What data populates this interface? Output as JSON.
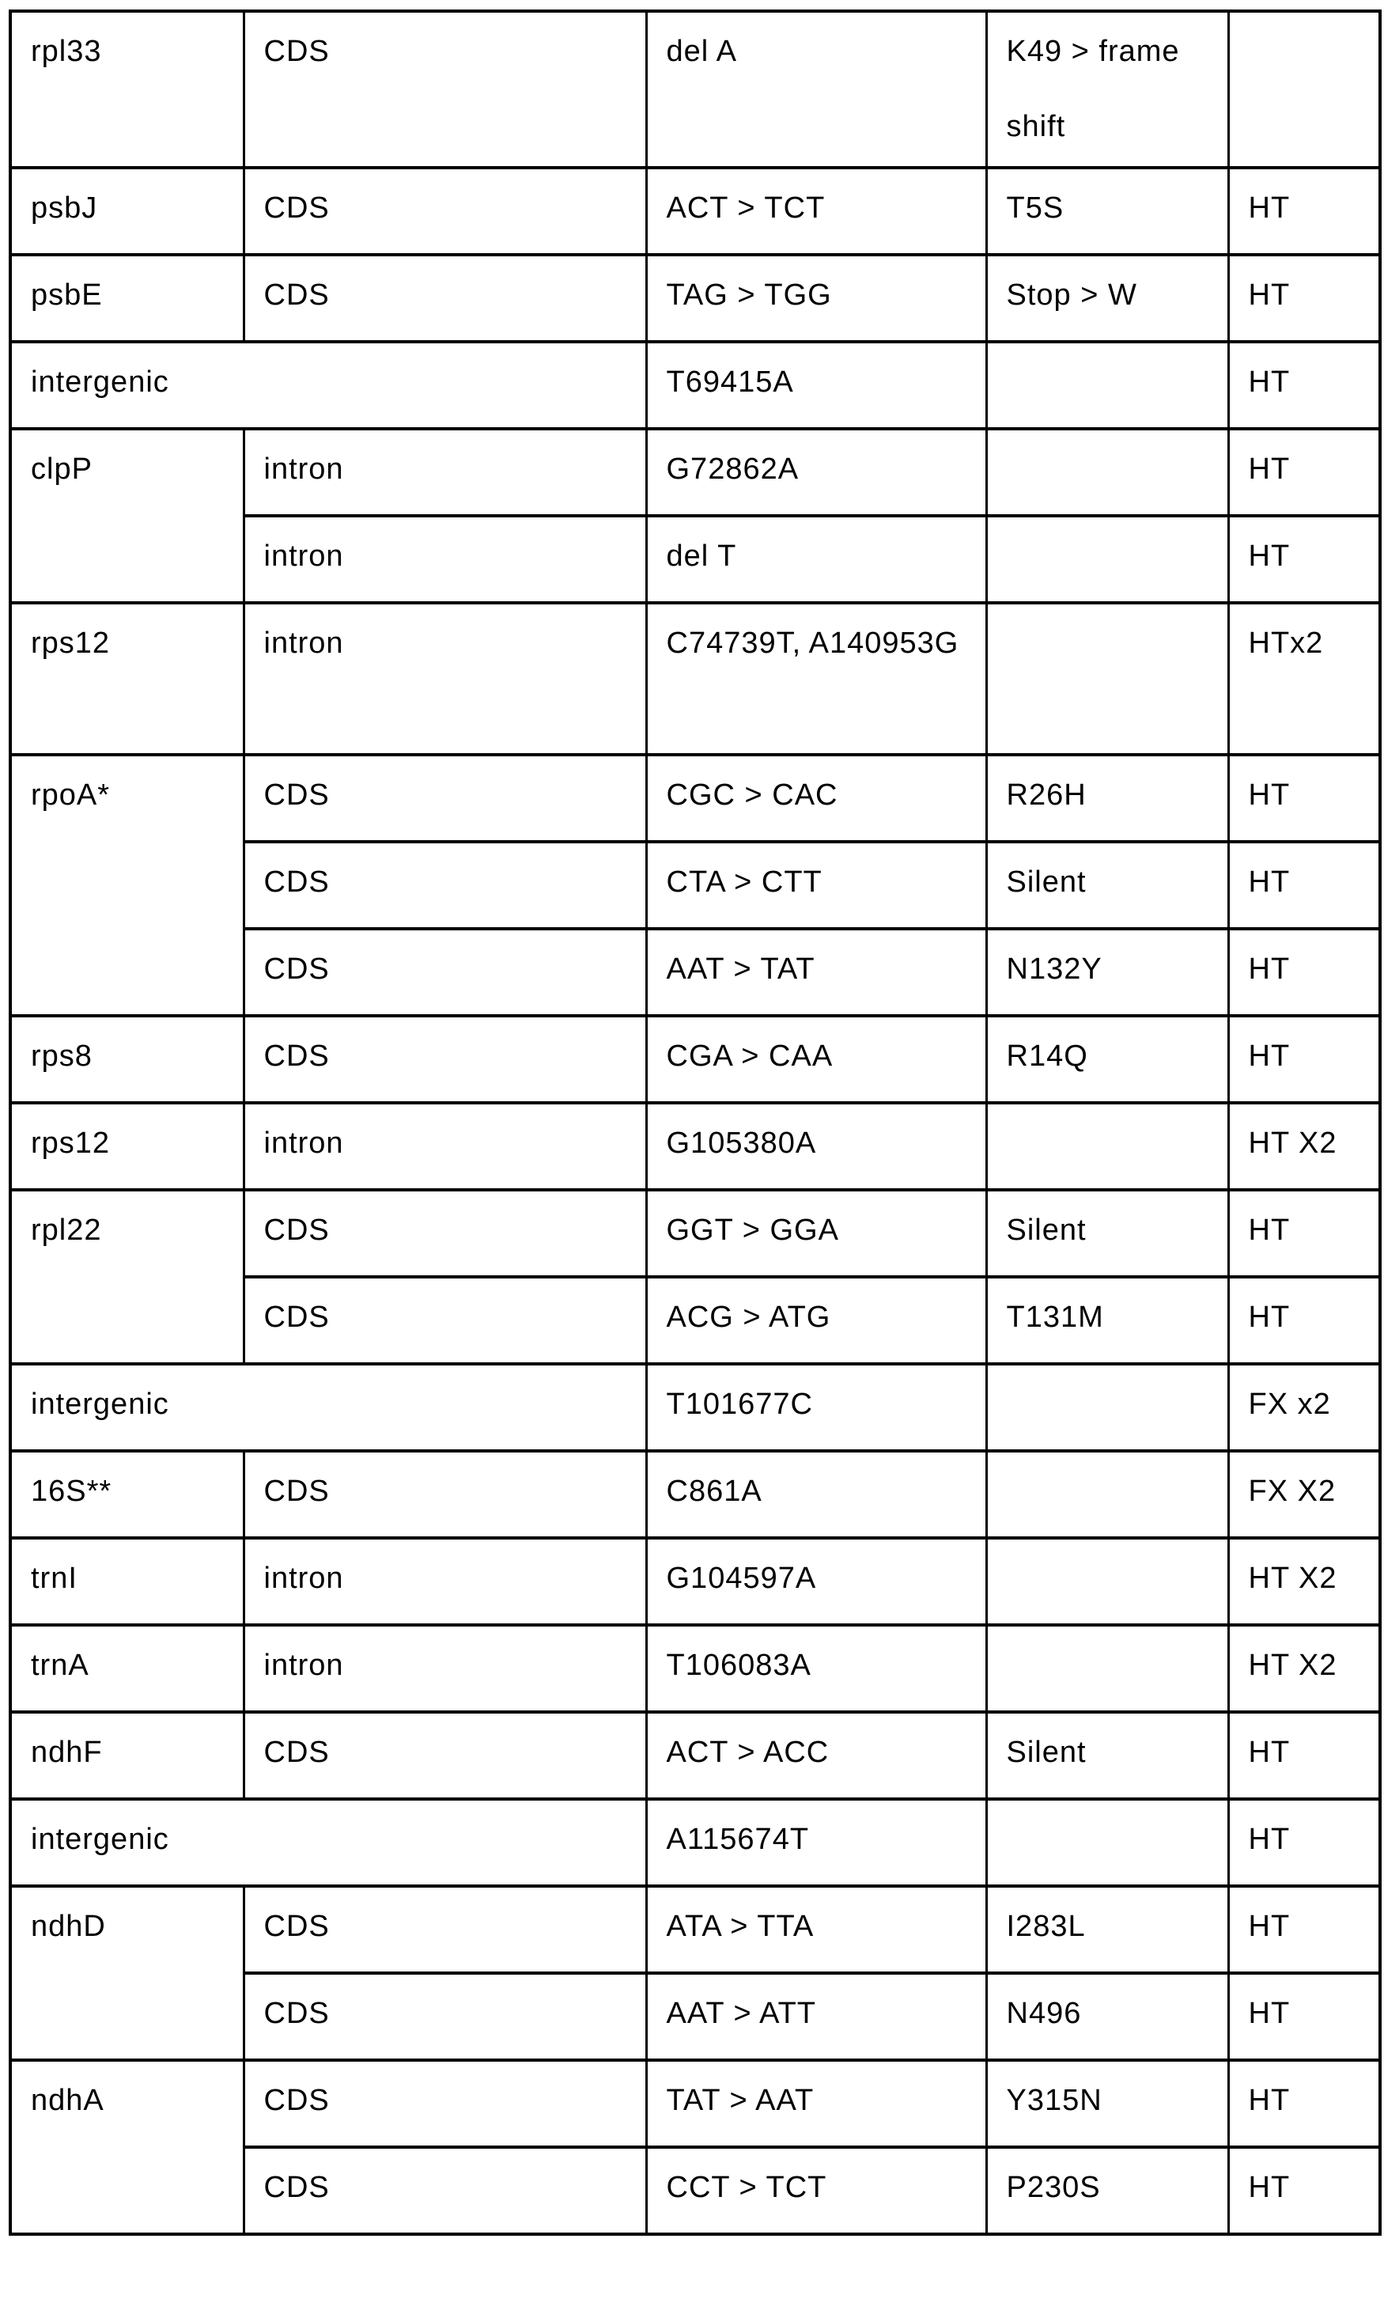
{
  "table": {
    "rows": [
      {
        "gene": "rpl33",
        "region": "CDS",
        "mutation": "del A",
        "effect": "K49 > frame shift",
        "status": ""
      },
      {
        "gene": "psbJ",
        "region": "CDS",
        "mutation": "ACT > TCT",
        "effect": "T5S",
        "status": "HT"
      },
      {
        "gene": "psbE",
        "region": "CDS",
        "mutation": "TAG > TGG",
        "effect": "Stop > W",
        "status": "HT"
      },
      {
        "gene": "intergenic",
        "mutation": "T69415A",
        "effect": "",
        "status": "HT"
      },
      {
        "gene": "clpP",
        "region": "intron",
        "mutation": "G72862A",
        "effect": "",
        "status": "HT"
      },
      {
        "region": "intron",
        "mutation": "del T",
        "effect": "",
        "status": "HT"
      },
      {
        "gene": "rps12",
        "region": "intron",
        "mutation": "C74739T, A140953G",
        "effect": "",
        "status": "HTx2"
      },
      {
        "gene": "rpoA*",
        "region": "CDS",
        "mutation": "CGC > CAC",
        "effect": "R26H",
        "status": "HT"
      },
      {
        "region": "CDS",
        "mutation": "CTA > CTT",
        "effect": "Silent",
        "status": "HT"
      },
      {
        "region": "CDS",
        "mutation": "AAT > TAT",
        "effect": "N132Y",
        "status": "HT"
      },
      {
        "gene": "rps8",
        "region": "CDS",
        "mutation": "CGA > CAA",
        "effect": "R14Q",
        "status": "HT"
      },
      {
        "gene": "rps12",
        "region": "intron",
        "mutation": "G105380A",
        "effect": "",
        "status": "HT X2"
      },
      {
        "gene": "rpl22",
        "region": "CDS",
        "mutation": "GGT > GGA",
        "effect": "Silent",
        "status": "HT"
      },
      {
        "region": "CDS",
        "mutation": "ACG > ATG",
        "effect": "T131M",
        "status": "HT"
      },
      {
        "gene": "intergenic",
        "mutation": "T101677C",
        "effect": "",
        "status": "FX x2"
      },
      {
        "gene": "16S**",
        "region": "CDS",
        "mutation": "C861A",
        "effect": "",
        "status": "FX X2"
      },
      {
        "gene": "trnI",
        "region": "intron",
        "mutation": "G104597A",
        "effect": "",
        "status": "HT X2"
      },
      {
        "gene": "trnA",
        "region": "intron",
        "mutation": "T106083A",
        "effect": "",
        "status": "HT X2"
      },
      {
        "gene": "ndhF",
        "region": "CDS",
        "mutation": "ACT > ACC",
        "effect": "Silent",
        "status": "HT"
      },
      {
        "gene": "intergenic",
        "mutation": "A115674T",
        "effect": "",
        "status": "HT"
      },
      {
        "gene": "ndhD",
        "region": "CDS",
        "mutation": "ATA > TTA",
        "effect": "I283L",
        "status": "HT"
      },
      {
        "region": "CDS",
        "mutation": "AAT > ATT",
        "effect": "N496",
        "status": "HT"
      },
      {
        "gene": "ndhA",
        "region": "CDS",
        "mutation": "TAT > AAT",
        "effect": "Y315N",
        "status": "HT"
      },
      {
        "region": "CDS",
        "mutation": "CCT > TCT",
        "effect": "P230S",
        "status": "HT"
      }
    ]
  }
}
